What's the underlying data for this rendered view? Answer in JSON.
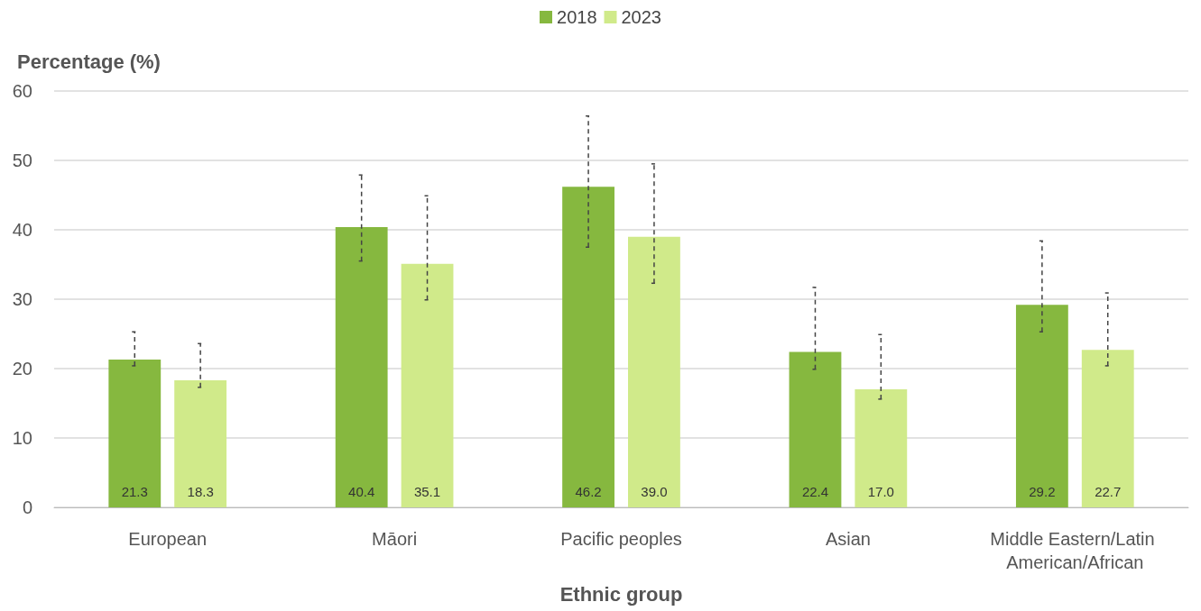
{
  "chart_data": {
    "type": "bar",
    "xlabel": "Ethnic group",
    "ylabel": "Percentage (%)",
    "categories": [
      "European",
      "Māori",
      "Pacific peoples",
      "Asian",
      "Middle Eastern/Latin American/African"
    ],
    "series": [
      {
        "name": "2018",
        "color": "#86b83f",
        "values": [
          21.3,
          40.4,
          46.2,
          22.4,
          29.2
        ],
        "value_labels": [
          "21.3",
          "40.4",
          "46.2",
          "22.4",
          "29.2"
        ],
        "errors": [
          [
            20.4,
            25.3
          ],
          [
            35.5,
            47.9
          ],
          [
            37.5,
            56.4
          ],
          [
            19.9,
            31.7
          ],
          [
            25.3,
            38.4
          ]
        ]
      },
      {
        "name": "2023",
        "color": "#d0ea8a",
        "values": [
          18.3,
          35.1,
          39.0,
          17.0,
          22.7
        ],
        "value_labels": [
          "18.3",
          "35.1",
          "39.0",
          "17.0",
          "22.7"
        ],
        "errors": [
          [
            17.3,
            23.6
          ],
          [
            29.9,
            44.9
          ],
          [
            32.3,
            49.5
          ],
          [
            15.6,
            24.9
          ],
          [
            20.4,
            30.9
          ]
        ]
      }
    ],
    "ylim": [
      0,
      60
    ],
    "yticks": [
      0,
      10,
      20,
      30,
      40,
      50,
      60
    ],
    "grid": "y",
    "legend": "top"
  }
}
